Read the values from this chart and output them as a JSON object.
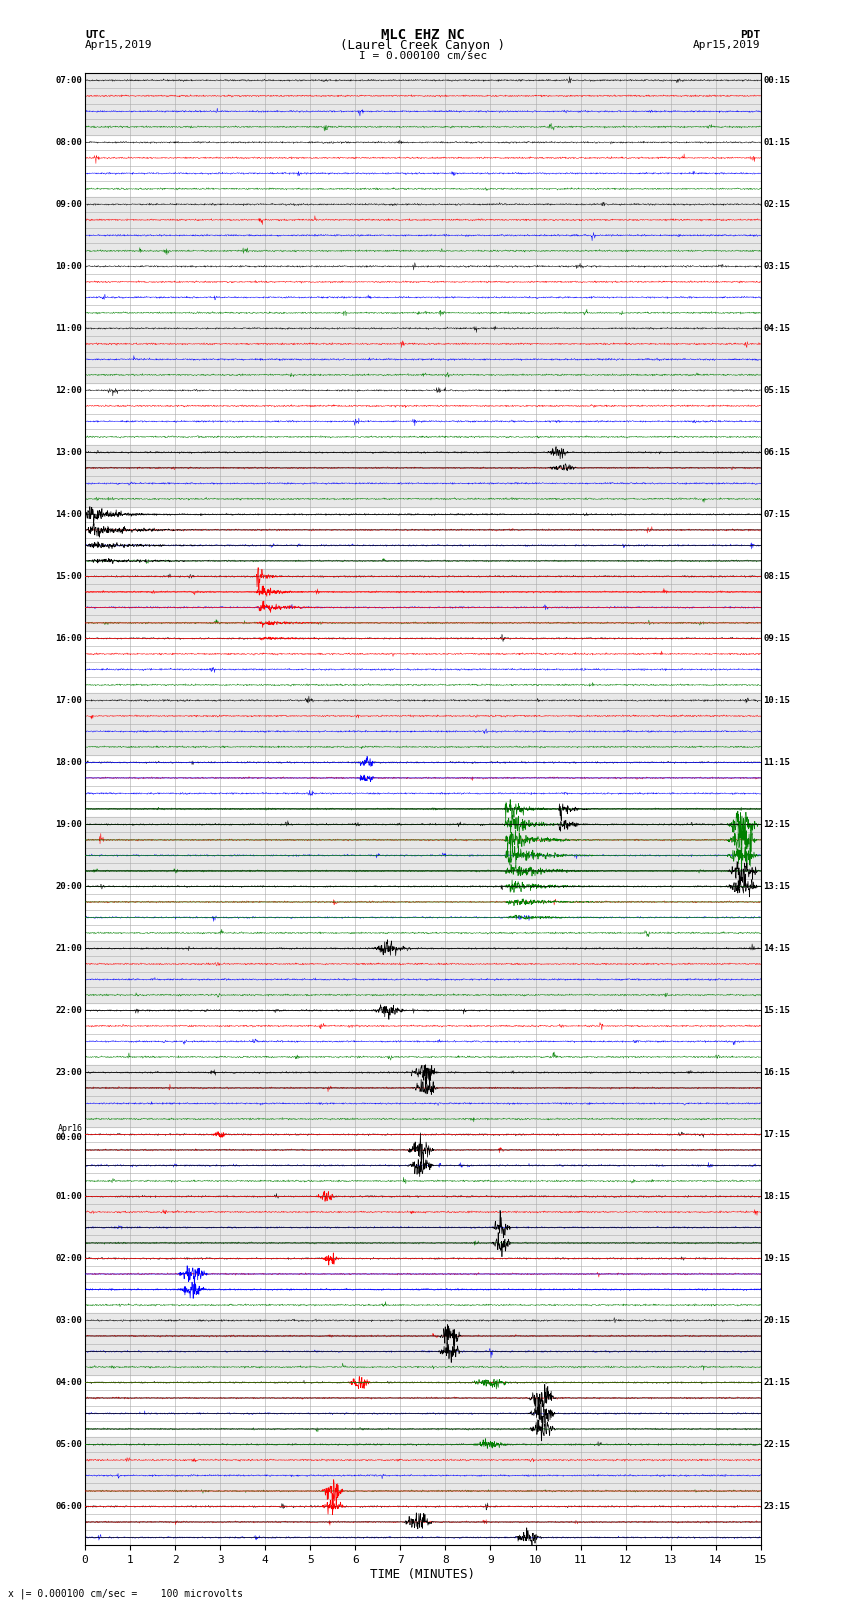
{
  "title_line1": "MLC EHZ NC",
  "title_line2": "(Laurel Creek Canyon )",
  "scale_label": "I = 0.000100 cm/sec",
  "utc_label": "UTC",
  "utc_date": "Apr15,2019",
  "pdt_label": "PDT",
  "pdt_date": "Apr15,2019",
  "xlabel": "TIME (MINUTES)",
  "footer_label": "x |= 0.000100 cm/sec =    100 microvolts",
  "xmin": 0,
  "xmax": 15,
  "fig_width": 8.5,
  "fig_height": 16.13,
  "dpi": 100,
  "background_color": "#ffffff",
  "band_color": "#e8e8e8",
  "grid_color": "#aaaaaa",
  "trace_colors": [
    "black",
    "red",
    "blue",
    "green"
  ],
  "left_times_utc": [
    "07:00",
    "",
    "",
    "",
    "08:00",
    "",
    "",
    "",
    "09:00",
    "",
    "",
    "",
    "10:00",
    "",
    "",
    "",
    "11:00",
    "",
    "",
    "",
    "12:00",
    "",
    "",
    "",
    "13:00",
    "",
    "",
    "",
    "14:00",
    "",
    "",
    "",
    "15:00",
    "",
    "",
    "",
    "16:00",
    "",
    "",
    "",
    "17:00",
    "",
    "",
    "",
    "18:00",
    "",
    "",
    "",
    "19:00",
    "",
    "",
    "",
    "20:00",
    "",
    "",
    "",
    "21:00",
    "",
    "",
    "",
    "22:00",
    "",
    "",
    "",
    "23:00",
    "",
    "",
    "",
    "Apr16\n00:00",
    "",
    "",
    "",
    "01:00",
    "",
    "",
    "",
    "02:00",
    "",
    "",
    "",
    "03:00",
    "",
    "",
    "",
    "04:00",
    "",
    "",
    "",
    "05:00",
    "",
    "",
    "",
    "06:00",
    "",
    ""
  ],
  "right_times_pdt": [
    "00:15",
    "",
    "",
    "",
    "01:15",
    "",
    "",
    "",
    "02:15",
    "",
    "",
    "",
    "03:15",
    "",
    "",
    "",
    "04:15",
    "",
    "",
    "",
    "05:15",
    "",
    "",
    "",
    "06:15",
    "",
    "",
    "",
    "07:15",
    "",
    "",
    "",
    "08:15",
    "",
    "",
    "",
    "09:15",
    "",
    "",
    "",
    "10:15",
    "",
    "",
    "",
    "11:15",
    "",
    "",
    "",
    "12:15",
    "",
    "",
    "",
    "13:15",
    "",
    "",
    "",
    "14:15",
    "",
    "",
    "",
    "15:15",
    "",
    "",
    "",
    "16:15",
    "",
    "",
    "",
    "17:15",
    "",
    "",
    "",
    "18:15",
    "",
    "",
    "",
    "19:15",
    "",
    "",
    "",
    "20:15",
    "",
    "",
    "",
    "21:15",
    "",
    "",
    "",
    "22:15",
    "",
    "",
    "",
    "23:15",
    "",
    ""
  ],
  "noise_seed": 42,
  "num_rows": 95,
  "samples_per_row": 1800,
  "noise_amp": 0.025,
  "special_events": [
    {
      "row": 32,
      "color": "red",
      "xstart": 3.8,
      "xend": 4.6,
      "amplitude": 0.45,
      "decay": true
    },
    {
      "row": 33,
      "color": "red",
      "xstart": 3.8,
      "xend": 5.5,
      "amplitude": 0.3,
      "decay": true
    },
    {
      "row": 34,
      "color": "red",
      "xstart": 3.8,
      "xend": 6.5,
      "amplitude": 0.2,
      "decay": true
    },
    {
      "row": 35,
      "color": "red",
      "xstart": 3.8,
      "xend": 7.0,
      "amplitude": 0.12,
      "decay": true
    },
    {
      "row": 36,
      "color": "red",
      "xstart": 3.8,
      "xend": 7.5,
      "amplitude": 0.08,
      "decay": true
    },
    {
      "row": 28,
      "color": "black",
      "xstart": 0.0,
      "xend": 2.5,
      "amplitude": 0.4,
      "decay": true
    },
    {
      "row": 29,
      "color": "black",
      "xstart": 0.0,
      "xend": 4.0,
      "amplitude": 0.25,
      "decay": true
    },
    {
      "row": 30,
      "color": "black",
      "xstart": 0.0,
      "xend": 5.0,
      "amplitude": 0.15,
      "decay": true
    },
    {
      "row": 31,
      "color": "black",
      "xstart": 0.0,
      "xend": 6.0,
      "amplitude": 0.1,
      "decay": true
    },
    {
      "row": 24,
      "color": "black",
      "xstart": 10.2,
      "xend": 10.8,
      "amplitude": 0.2,
      "decay": false
    },
    {
      "row": 25,
      "color": "black",
      "xstart": 10.2,
      "xend": 11.0,
      "amplitude": 0.15,
      "decay": false
    },
    {
      "row": 44,
      "color": "blue",
      "xstart": 6.0,
      "xend": 6.5,
      "amplitude": 0.18,
      "decay": false
    },
    {
      "row": 45,
      "color": "blue",
      "xstart": 6.0,
      "xend": 6.5,
      "amplitude": 0.15,
      "decay": false
    },
    {
      "row": 47,
      "color": "green",
      "xstart": 9.3,
      "xend": 10.8,
      "amplitude": 0.6,
      "decay": true
    },
    {
      "row": 48,
      "color": "green",
      "xstart": 9.3,
      "xend": 11.2,
      "amplitude": 0.6,
      "decay": true
    },
    {
      "row": 49,
      "color": "green",
      "xstart": 9.3,
      "xend": 11.8,
      "amplitude": 0.55,
      "decay": true
    },
    {
      "row": 50,
      "color": "green",
      "xstart": 9.3,
      "xend": 12.2,
      "amplitude": 0.45,
      "decay": true
    },
    {
      "row": 51,
      "color": "green",
      "xstart": 9.3,
      "xend": 12.5,
      "amplitude": 0.35,
      "decay": true
    },
    {
      "row": 52,
      "color": "green",
      "xstart": 9.3,
      "xend": 13.0,
      "amplitude": 0.25,
      "decay": true
    },
    {
      "row": 53,
      "color": "green",
      "xstart": 9.3,
      "xend": 13.5,
      "amplitude": 0.15,
      "decay": true
    },
    {
      "row": 54,
      "color": "green",
      "xstart": 9.3,
      "xend": 14.0,
      "amplitude": 0.1,
      "decay": true
    },
    {
      "row": 47,
      "color": "black",
      "xstart": 10.5,
      "xend": 11.5,
      "amplitude": 0.45,
      "decay": true
    },
    {
      "row": 48,
      "color": "black",
      "xstart": 10.5,
      "xend": 11.5,
      "amplitude": 0.4,
      "decay": true
    },
    {
      "row": 48,
      "color": "green",
      "xstart": 14.2,
      "xend": 15.0,
      "amplitude": 0.7,
      "decay": false
    },
    {
      "row": 49,
      "color": "green",
      "xstart": 14.2,
      "xend": 15.0,
      "amplitude": 0.55,
      "decay": false
    },
    {
      "row": 50,
      "color": "green",
      "xstart": 14.2,
      "xend": 15.0,
      "amplitude": 0.4,
      "decay": false
    },
    {
      "row": 51,
      "color": "black",
      "xstart": 14.2,
      "xend": 15.0,
      "amplitude": 0.5,
      "decay": false
    },
    {
      "row": 52,
      "color": "black",
      "xstart": 14.2,
      "xend": 15.0,
      "amplitude": 0.4,
      "decay": false
    },
    {
      "row": 56,
      "color": "black",
      "xstart": 6.3,
      "xend": 7.2,
      "amplitude": 0.25,
      "decay": false
    },
    {
      "row": 60,
      "color": "black",
      "xstart": 6.3,
      "xend": 7.2,
      "amplitude": 0.2,
      "decay": false
    },
    {
      "row": 64,
      "color": "black",
      "xstart": 7.2,
      "xend": 7.9,
      "amplitude": 0.35,
      "decay": false
    },
    {
      "row": 65,
      "color": "black",
      "xstart": 7.2,
      "xend": 7.9,
      "amplitude": 0.28,
      "decay": false
    },
    {
      "row": 68,
      "color": "red",
      "xstart": 2.8,
      "xend": 3.2,
      "amplitude": 0.15,
      "decay": false
    },
    {
      "row": 72,
      "color": "red",
      "xstart": 5.1,
      "xend": 5.6,
      "amplitude": 0.2,
      "decay": false
    },
    {
      "row": 76,
      "color": "red",
      "xstart": 5.2,
      "xend": 5.7,
      "amplitude": 0.18,
      "decay": false
    },
    {
      "row": 69,
      "color": "black",
      "xstart": 7.1,
      "xend": 7.8,
      "amplitude": 0.45,
      "decay": false
    },
    {
      "row": 70,
      "color": "black",
      "xstart": 7.1,
      "xend": 7.8,
      "amplitude": 0.35,
      "decay": false
    },
    {
      "row": 74,
      "color": "black",
      "xstart": 9.0,
      "xend": 9.5,
      "amplitude": 0.5,
      "decay": false
    },
    {
      "row": 75,
      "color": "black",
      "xstart": 9.0,
      "xend": 9.5,
      "amplitude": 0.4,
      "decay": false
    },
    {
      "row": 77,
      "color": "blue",
      "xstart": 2.0,
      "xend": 2.8,
      "amplitude": 0.3,
      "decay": false
    },
    {
      "row": 78,
      "color": "blue",
      "xstart": 2.0,
      "xend": 2.8,
      "amplitude": 0.25,
      "decay": false
    },
    {
      "row": 81,
      "color": "black",
      "xstart": 7.8,
      "xend": 8.4,
      "amplitude": 0.4,
      "decay": false
    },
    {
      "row": 82,
      "color": "black",
      "xstart": 7.8,
      "xend": 8.4,
      "amplitude": 0.3,
      "decay": false
    },
    {
      "row": 85,
      "color": "black",
      "xstart": 9.8,
      "xend": 10.5,
      "amplitude": 0.55,
      "decay": false
    },
    {
      "row": 86,
      "color": "black",
      "xstart": 9.8,
      "xend": 10.5,
      "amplitude": 0.45,
      "decay": false
    },
    {
      "row": 87,
      "color": "black",
      "xstart": 9.8,
      "xend": 10.5,
      "amplitude": 0.35,
      "decay": false
    },
    {
      "row": 84,
      "color": "red",
      "xstart": 5.8,
      "xend": 6.4,
      "amplitude": 0.25,
      "decay": false
    },
    {
      "row": 84,
      "color": "green",
      "xstart": 8.5,
      "xend": 9.5,
      "amplitude": 0.18,
      "decay": false
    },
    {
      "row": 88,
      "color": "green",
      "xstart": 8.5,
      "xend": 9.5,
      "amplitude": 0.15,
      "decay": false
    },
    {
      "row": 91,
      "color": "red",
      "xstart": 5.2,
      "xend": 5.8,
      "amplitude": 0.35,
      "decay": false
    },
    {
      "row": 92,
      "color": "red",
      "xstart": 5.2,
      "xend": 5.8,
      "amplitude": 0.28,
      "decay": false
    },
    {
      "row": 93,
      "color": "black",
      "xstart": 7.0,
      "xend": 7.8,
      "amplitude": 0.3,
      "decay": false
    },
    {
      "row": 94,
      "color": "black",
      "xstart": 9.5,
      "xend": 10.2,
      "amplitude": 0.35,
      "decay": false
    }
  ]
}
